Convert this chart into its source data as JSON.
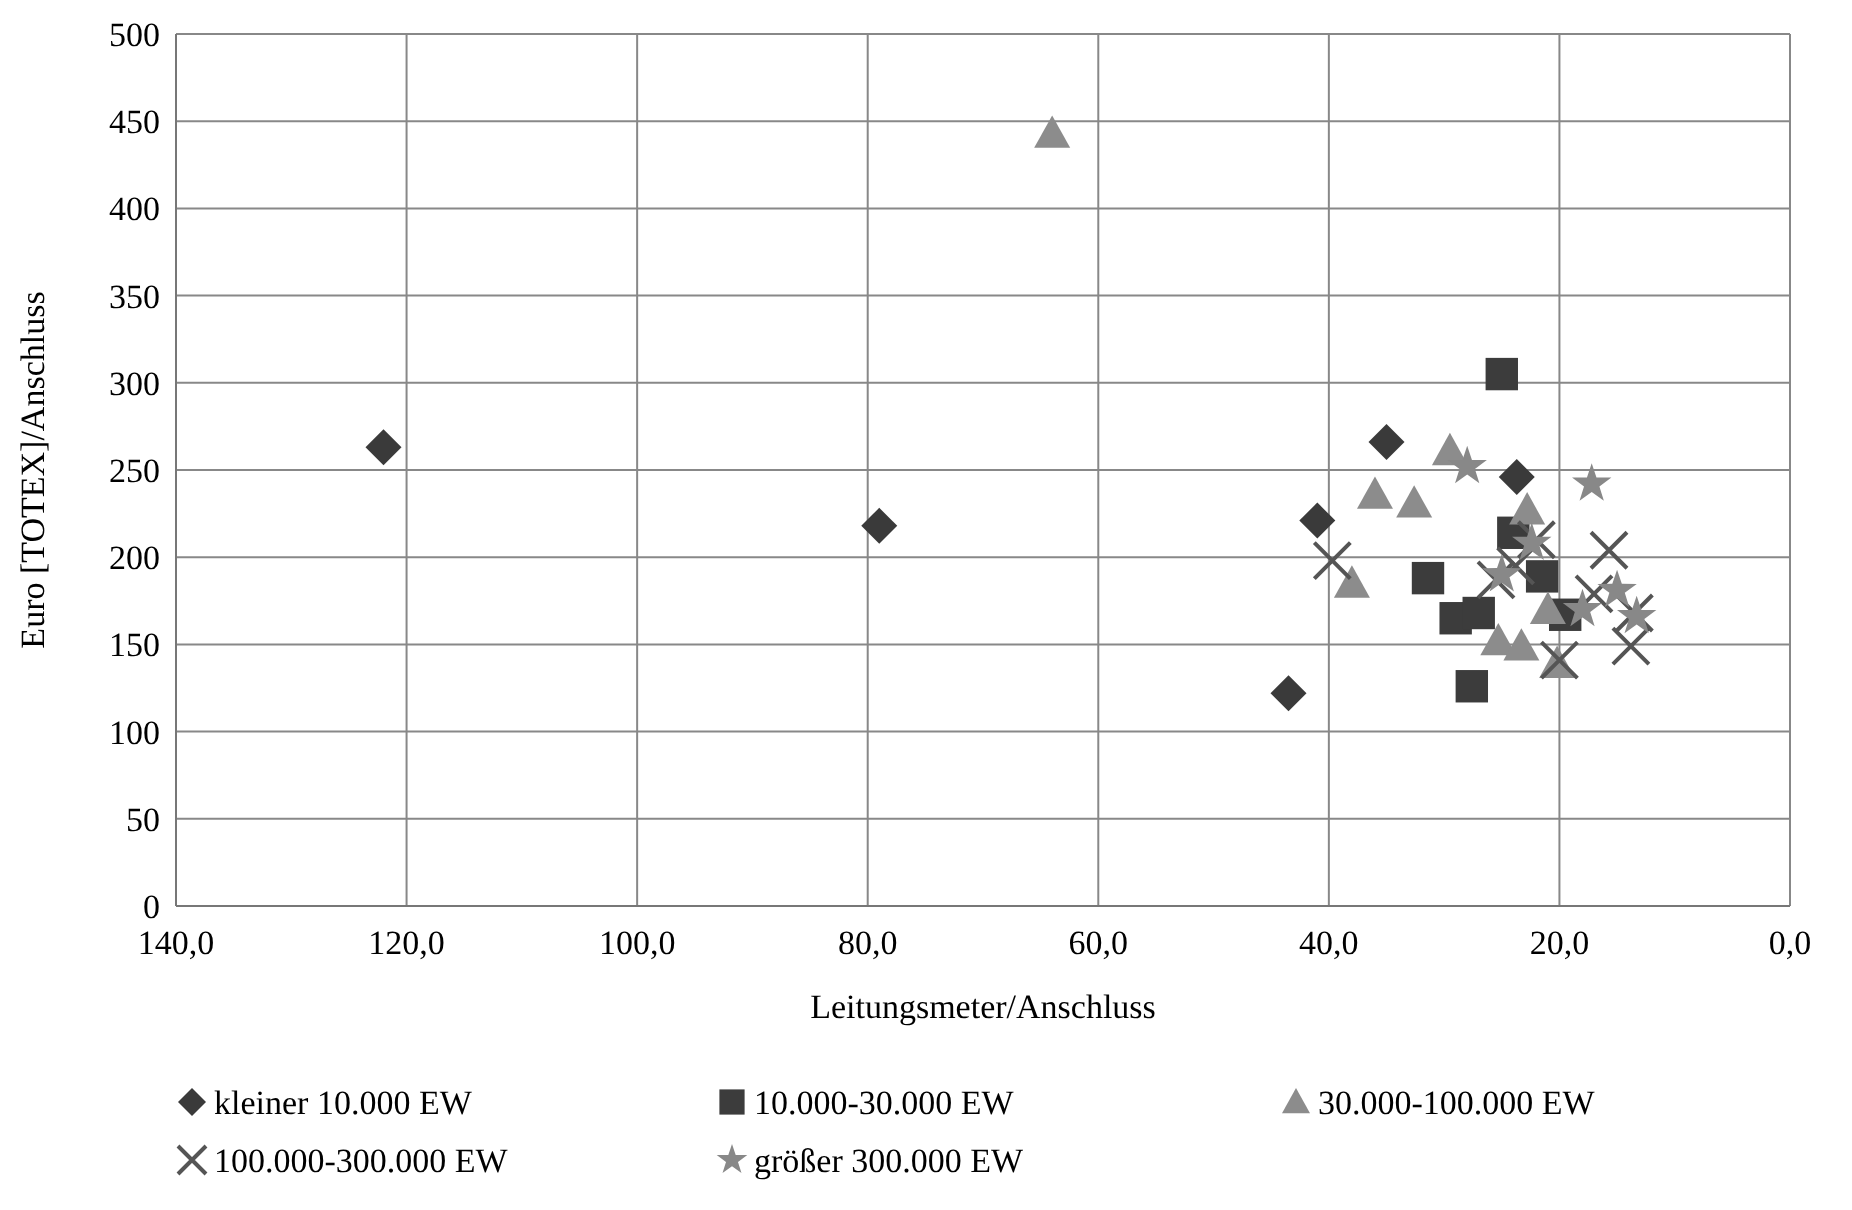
{
  "chart_data": {
    "type": "scatter",
    "xlabel": "Leitungsmeter/Anschluss",
    "ylabel": "Euro [TOTEX]/Anschluss",
    "xlim": [
      140,
      0
    ],
    "xticks": [
      {
        "value": 140,
        "label": "140,0"
      },
      {
        "value": 120,
        "label": "120,0"
      },
      {
        "value": 100,
        "label": "100,0"
      },
      {
        "value": 80,
        "label": "80,0"
      },
      {
        "value": 60,
        "label": "60,0"
      },
      {
        "value": 40,
        "label": "40,0"
      },
      {
        "value": 20,
        "label": "20,0"
      },
      {
        "value": 0,
        "label": "0,0"
      }
    ],
    "ylim": [
      0,
      500
    ],
    "yticks": [
      0,
      50,
      100,
      150,
      200,
      250,
      300,
      350,
      400,
      450,
      500
    ],
    "grid": true,
    "legend": "bottom",
    "series": [
      {
        "name": "kleiner 10.000 EW",
        "color": "#3a3a3a",
        "marker": "diamond",
        "x": [
          122,
          79,
          35,
          41,
          23.7,
          43.5
        ],
        "values": [
          263,
          218,
          266,
          221,
          246,
          122
        ]
      },
      {
        "name": "10.000-30.000 EW",
        "color": "#3c3c3c",
        "marker": "square",
        "x": [
          25,
          31.4,
          29,
          27,
          24,
          21.5,
          27.6,
          19.5
        ],
        "values": [
          305,
          188,
          165,
          168,
          214,
          189,
          126,
          167
        ]
      },
      {
        "name": "30.000-100.000 EW",
        "color": "#8c8c8c",
        "marker": "triangle",
        "x": [
          64,
          29.5,
          36,
          32.6,
          38,
          22.8,
          21,
          25.3,
          23.3,
          20.2
        ],
        "values": [
          443,
          261,
          236,
          231,
          185,
          227,
          170,
          152,
          149,
          139
        ]
      },
      {
        "name": "100.000-300.000 EW",
        "color": "#555555",
        "marker": "cross",
        "x": [
          39.7,
          25.5,
          22,
          15.7,
          17,
          13.5,
          13.8,
          20,
          23.8
        ],
        "values": [
          198,
          187,
          210,
          204,
          179,
          168,
          149,
          141,
          195
        ]
      },
      {
        "name": "größer 300.000 EW",
        "color": "#888888",
        "marker": "star",
        "x": [
          28,
          17.2,
          22.4,
          15,
          13.3,
          18,
          25
        ],
        "values": [
          252,
          242,
          208,
          181,
          166,
          170,
          190
        ]
      }
    ]
  }
}
